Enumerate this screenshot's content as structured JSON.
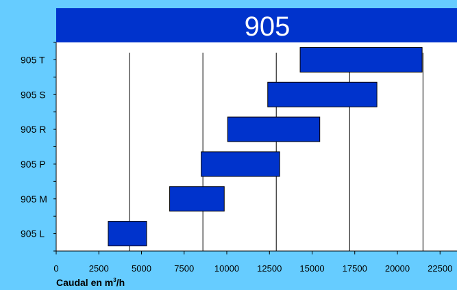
{
  "chart_data": {
    "type": "range-bar",
    "title": "905",
    "xlabel_prefix": "Caudal en m",
    "xlabel_superscript": "3",
    "xlabel_suffix": "/h",
    "ylabel": "",
    "xlim": [
      0,
      23500
    ],
    "x_ticks": [
      0,
      2500,
      5000,
      7500,
      10000,
      12500,
      15000,
      17500,
      20000,
      22500
    ],
    "x_tick_labels": [
      "0",
      "2500",
      "5000",
      "7500",
      "10000",
      "12500",
      "15000",
      "17500",
      "20000",
      "22500"
    ],
    "vertical_lines": [
      4300,
      8600,
      12900,
      17200,
      21500
    ],
    "grid": false,
    "bar_color": "#0033cc",
    "categories": [
      "905 T",
      "905 S",
      "905 R",
      "905 P",
      "905 M",
      "905 L"
    ],
    "ranges": [
      {
        "name": "905 T",
        "start": 14300,
        "end": 21450
      },
      {
        "name": "905 S",
        "start": 12400,
        "end": 18800
      },
      {
        "name": "905 R",
        "start": 10050,
        "end": 15450
      },
      {
        "name": "905 P",
        "start": 8500,
        "end": 13100
      },
      {
        "name": "905 M",
        "start": 6650,
        "end": 9850
      },
      {
        "name": "905 L",
        "start": 3050,
        "end": 5300
      }
    ]
  },
  "colors": {
    "background": "#66ccff",
    "title_band": "#0033cc",
    "plot_area": "#ffffff"
  }
}
